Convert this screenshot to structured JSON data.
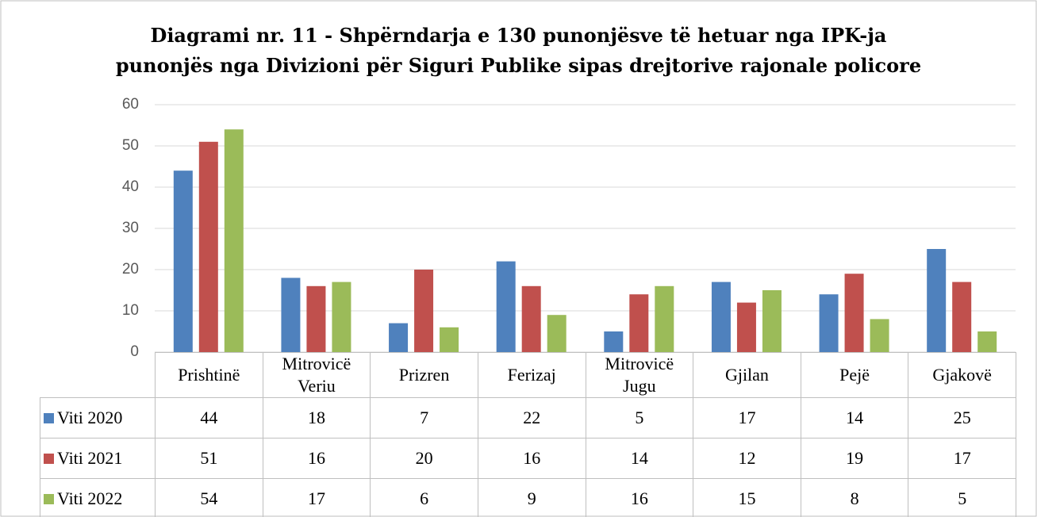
{
  "chart_data": {
    "type": "bar",
    "title": [
      "Diagrami nr. 11 - Shpërndarja e 130 punonjësve të hetuar nga IPK-ja",
      "punonjës nga Divizioni për Siguri Publike sipas drejtorive rajonale policore"
    ],
    "categories": [
      "Prishtinë",
      "Mitrovicë Veriu",
      "Prizren",
      "Ferizaj",
      "Mitrovicë Jugu",
      "Gjilan",
      "Pejë",
      "Gjakovë"
    ],
    "series": [
      {
        "name": "Viti 2020",
        "color": "#4f81bd",
        "values": [
          44,
          18,
          7,
          22,
          5,
          17,
          14,
          25
        ]
      },
      {
        "name": "Viti 2021",
        "color": "#c0504d",
        "values": [
          51,
          16,
          20,
          16,
          14,
          12,
          19,
          17
        ]
      },
      {
        "name": "Viti 2022",
        "color": "#9bbb59",
        "values": [
          54,
          17,
          6,
          9,
          16,
          15,
          8,
          5
        ]
      }
    ],
    "ylim": [
      0,
      60
    ],
    "yticks": [
      0,
      10,
      20,
      30,
      40,
      50,
      60
    ],
    "grid": true
  }
}
